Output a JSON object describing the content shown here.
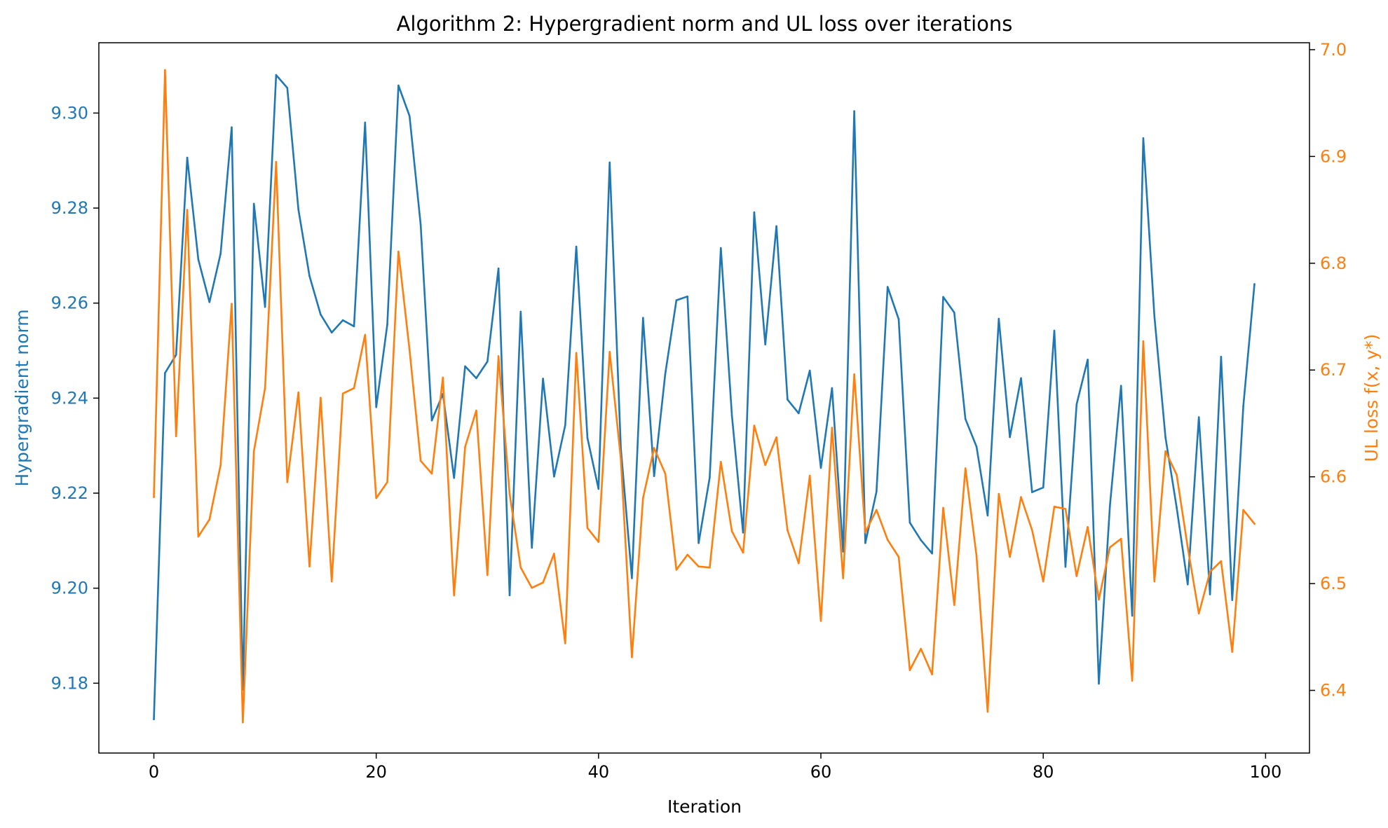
{
  "chart_data": {
    "type": "line",
    "title": "Algorithm 2: Hypergradient norm and UL loss over iterations",
    "xlabel": "Iteration",
    "ylabel_left": "Hypergradient norm",
    "ylabel_right": "UL loss f(x, y*)",
    "xlim": [
      -4.95,
      103.95
    ],
    "ylim_left": [
      9.1653,
      9.3148
    ],
    "ylim_right": [
      6.3413,
      7.0065
    ],
    "x_ticks": [
      0,
      20,
      40,
      60,
      80,
      100
    ],
    "x_tick_labels": [
      "0",
      "20",
      "40",
      "60",
      "80",
      "100"
    ],
    "y_left_ticks": [
      9.18,
      9.2,
      9.22,
      9.24,
      9.26,
      9.28,
      9.3
    ],
    "y_left_tick_labels": [
      "9.18",
      "9.20",
      "9.22",
      "9.24",
      "9.26",
      "9.28",
      "9.30"
    ],
    "y_right_ticks": [
      6.4,
      6.5,
      6.6,
      6.7,
      6.8,
      6.9,
      7.0
    ],
    "y_right_tick_labels": [
      "6.4",
      "6.5",
      "6.6",
      "6.7",
      "6.8",
      "6.9",
      "7.0"
    ],
    "grid": false,
    "colors": {
      "hypergrad": "#1f77b4",
      "ul_loss": "#ff7f0e",
      "axes": "#000000"
    },
    "series": [
      {
        "axis": "left",
        "values": [
          9.1724,
          9.2453,
          9.2491,
          9.2906,
          9.2692,
          9.2602,
          9.2704,
          9.297,
          9.1786,
          9.2809,
          9.2592,
          9.308,
          9.3053,
          9.2797,
          9.2657,
          9.2576,
          9.2538,
          9.2564,
          9.2551,
          9.298,
          9.2381,
          9.2555,
          9.3058,
          9.2994,
          9.2765,
          9.2353,
          9.2409,
          9.2232,
          9.2467,
          9.2442,
          9.2477,
          9.2673,
          9.1985,
          9.2582,
          9.2085,
          9.2441,
          9.2235,
          9.2343,
          9.2719,
          9.2316,
          9.2209,
          9.2896,
          9.2295,
          9.2021,
          9.2569,
          9.2236,
          9.2451,
          9.2606,
          9.2614,
          9.2095,
          9.2233,
          9.2716,
          9.2363,
          9.2117,
          9.2791,
          9.2513,
          9.2762,
          9.2397,
          9.2368,
          9.2458,
          9.2253,
          9.2421,
          9.2077,
          9.3004,
          9.2095,
          9.2203,
          9.2634,
          9.2566,
          9.2138,
          9.2101,
          9.2073,
          9.2613,
          9.258,
          9.2356,
          9.2298,
          9.2153,
          9.2567,
          9.2318,
          9.2442,
          9.2202,
          9.2212,
          9.2542,
          9.2045,
          9.2387,
          9.2481,
          9.1799,
          9.2173,
          9.2426,
          9.1942,
          9.2947,
          9.2572,
          9.2317,
          9.217,
          9.2008,
          9.236,
          9.1987,
          9.2487,
          9.1975,
          9.2383,
          9.264
        ]
      },
      {
        "axis": "right",
        "values": [
          6.581,
          6.981,
          6.638,
          6.85,
          6.544,
          6.56,
          6.611,
          6.762,
          6.37,
          6.624,
          6.683,
          6.895,
          6.595,
          6.679,
          6.516,
          6.674,
          6.502,
          6.678,
          6.683,
          6.733,
          6.58,
          6.595,
          6.811,
          6.719,
          6.615,
          6.603,
          6.693,
          6.489,
          6.628,
          6.662,
          6.508,
          6.713,
          6.584,
          6.515,
          6.496,
          6.501,
          6.528,
          6.444,
          6.716,
          6.552,
          6.539,
          6.717,
          6.617,
          6.431,
          6.58,
          6.627,
          6.603,
          6.513,
          6.527,
          6.516,
          6.515,
          6.614,
          6.549,
          6.529,
          6.648,
          6.611,
          6.637,
          6.55,
          6.519,
          6.601,
          6.465,
          6.646,
          6.505,
          6.696,
          6.548,
          6.569,
          6.541,
          6.525,
          6.419,
          6.439,
          6.415,
          6.571,
          6.48,
          6.608,
          6.526,
          6.38,
          6.584,
          6.525,
          6.581,
          6.55,
          6.502,
          6.572,
          6.57,
          6.507,
          6.553,
          6.485,
          6.534,
          6.542,
          6.409,
          6.727,
          6.502,
          6.624,
          6.602,
          6.534,
          6.472,
          6.511,
          6.521,
          6.436,
          6.569,
          6.556
        ]
      }
    ]
  }
}
